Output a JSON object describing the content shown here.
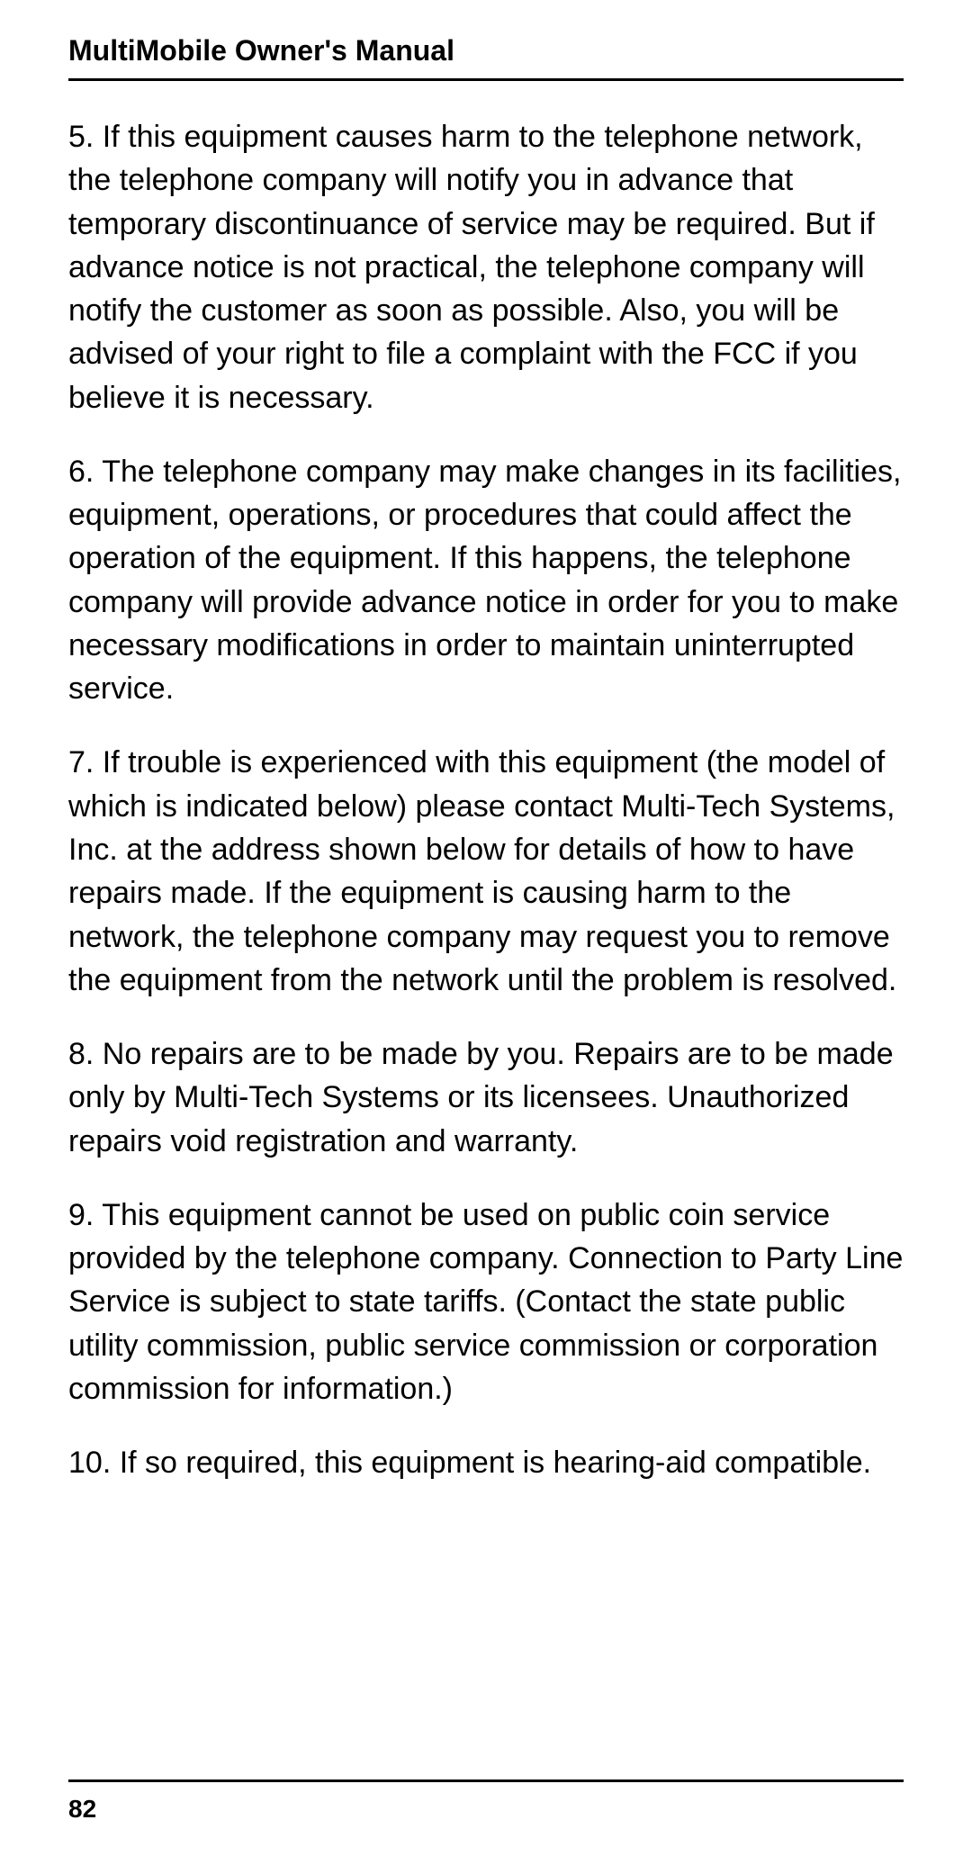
{
  "header": {
    "title": "MultiMobile Owner's Manual"
  },
  "paragraphs": {
    "p5": "5.  If this equipment causes harm to the telephone network, the telephone company will notify you in advance that temporary discontinuance of service may be required.  But if advance notice is not practical, the telephone company will notify the customer as soon as possible.  Also, you will be advised of your right to file a complaint with the FCC if you believe it is necessary.",
    "p6": "6.  The telephone company may make changes in its facilities, equipment, operations, or procedures that could affect the operation of the equipment.  If this happens, the telephone company will provide advance notice in order for you to make necessary modifications in order to maintain uninterrupted service.",
    "p7": "7.  If trouble is experienced with this equipment (the model of which is indicated below) please contact Multi-Tech Systems, Inc. at the address shown below for details of how to have repairs made.  If the equipment is causing harm to the network, the telephone company may request you to remove the equipment from the network until the problem is resolved.",
    "p8": "8.  No repairs are to be made by you.  Repairs are to be made only by Multi-Tech Systems or its licensees.  Unauthorized repairs void registration and warranty.",
    "p9": "9.  This equipment cannot be used on public coin service provided by the telephone company.  Connection to Party Line Service is subject to state tariffs.  (Contact the state public utility commission, public service commission or corporation commission for information.)",
    "p10": "10.  If so required, this equipment is hearing-aid compatible."
  },
  "footer": {
    "page_number": "82"
  },
  "styling": {
    "background_color": "#ffffff",
    "text_color": "#000000",
    "header_fontsize": 32,
    "body_fontsize": 34,
    "footer_fontsize": 28,
    "rule_color": "#000000",
    "rule_width": 3
  }
}
